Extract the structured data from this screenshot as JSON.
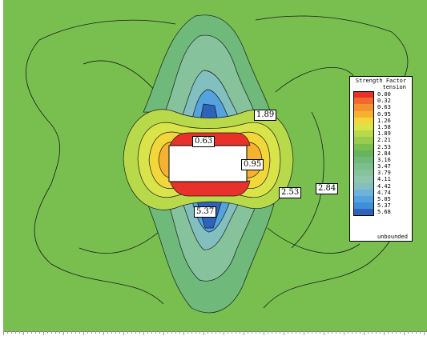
{
  "chart_data": {
    "type": "heatmap",
    "title": "",
    "legend": {
      "title": "Strength Factor",
      "subtitle": "tension",
      "placement": "right",
      "entries": [
        {
          "value": "0.00",
          "color": "#e8312b"
        },
        {
          "value": "0.32",
          "color": "#ef6a2c"
        },
        {
          "value": "0.63",
          "color": "#f3922e"
        },
        {
          "value": "0.95",
          "color": "#f6b22f"
        },
        {
          "value": "1.26",
          "color": "#f2d73a"
        },
        {
          "value": "1.58",
          "color": "#d9e44a"
        },
        {
          "value": "1.89",
          "color": "#b8d94a"
        },
        {
          "value": "2.21",
          "color": "#99cc4d"
        },
        {
          "value": "2.53",
          "color": "#79bf4f"
        },
        {
          "value": "2.84",
          "color": "#66b55c"
        },
        {
          "value": "3.16",
          "color": "#6fb97a"
        },
        {
          "value": "3.47",
          "color": "#7cbf8c"
        },
        {
          "value": "3.79",
          "color": "#86c39c"
        },
        {
          "value": "4.11",
          "color": "#8fc6ab"
        },
        {
          "value": "4.42",
          "color": "#84bfc0"
        },
        {
          "value": "4.74",
          "color": "#6fb2d8"
        },
        {
          "value": "5.05",
          "color": "#55a2e0"
        },
        {
          "value": "5.37",
          "color": "#3d8fd9"
        },
        {
          "value": "5.68",
          "color": "#2d63b8"
        }
      ],
      "unbounded_label": "unbounded"
    },
    "contour_labels": [
      {
        "text": "1.89",
        "ref": "upper-right"
      },
      {
        "text": "0.63",
        "ref": "top-of-opening"
      },
      {
        "text": "0.95",
        "ref": "right-of-opening"
      },
      {
        "text": "5.37",
        "ref": "below-opening"
      },
      {
        "text": "2.53",
        "ref": "right"
      },
      {
        "text": "2.84",
        "ref": "far-right"
      }
    ],
    "background_value": "2.84",
    "opening_shape": "rectangle",
    "grid": false
  }
}
